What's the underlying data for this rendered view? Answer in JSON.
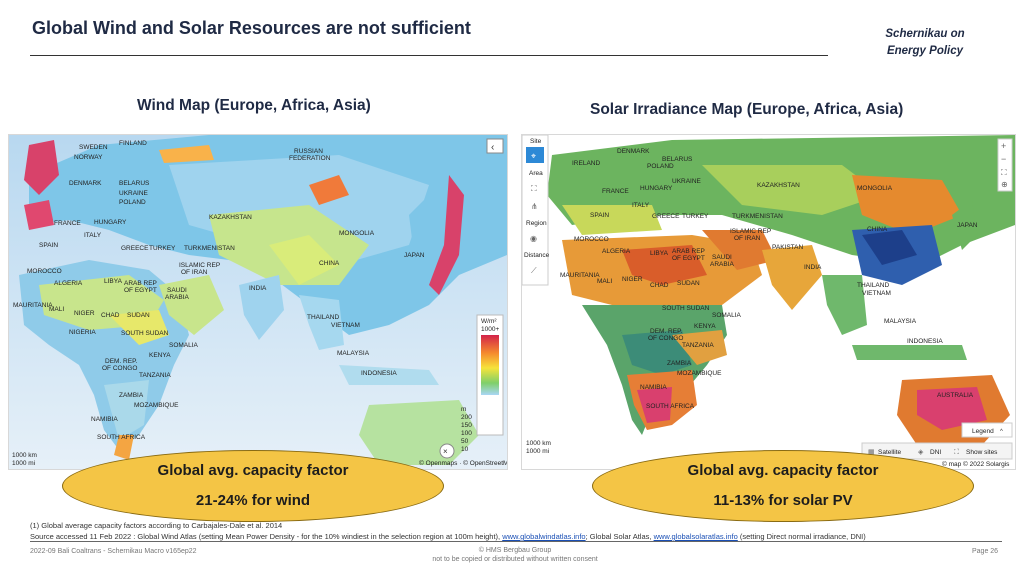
{
  "header": {
    "title": "Global Wind and Solar Resources are not sufficient",
    "brand_line1": "Schernikau on",
    "brand_line2": "Energy Policy"
  },
  "wind_map": {
    "title": "Wind Map (Europe, Africa, Asia)",
    "legend_unit": "W/m²",
    "legend_top": "1000+",
    "legend_scale": [
      "m",
      "200",
      "150",
      "100",
      "50",
      "10"
    ],
    "scale_bar": [
      "1000 km",
      "1000 mi"
    ],
    "attribution": "© Openmaps · © OpenStreetMap",
    "labels": [
      "SWEDEN",
      "FINLAND",
      "NORWAY",
      "RUSSIAN",
      "FEDERATION",
      "DENMARK",
      "BELARUS",
      "POLAND",
      "UKRAINE",
      "KAZAKHSTAN",
      "FRANCE",
      "HUNGARY",
      "ITALY",
      "SPAIN",
      "GREECE",
      "TURKEY",
      "TURKMENISTAN",
      "MOROCCO",
      "ISLAMIC REP",
      "OF IRAN",
      "ALGERIA",
      "LIBYA",
      "ARAB REP",
      "OF EGYPT",
      "SAUDI",
      "ARABIA",
      "CHINA",
      "INDIA",
      "MAURITANIA",
      "MALI",
      "NIGER",
      "CHAD",
      "SUDAN",
      "THAILAND",
      "VIETNAM",
      "NIGERIA",
      "SOUTH SUDAN",
      "DEM. REP.",
      "OF CONGO",
      "KENYA",
      "SOMALIA",
      "TANZANIA",
      "MALAYSIA",
      "INDONESIA",
      "ZAMBIA",
      "MOZAMBIQUE",
      "NAMIBIA",
      "SOUTH AFRICA",
      "JAPAN",
      "MONGOLIA"
    ]
  },
  "solar_map": {
    "title": "Solar Irradiance Map (Europe, Africa, Asia)",
    "sidebar": [
      "Site",
      "Area",
      "Region",
      "Distance"
    ],
    "legend_button": "Legend",
    "buttons": [
      "Satellite",
      "DNI",
      "Show sites"
    ],
    "scale_bar": [
      "1000 km",
      "1000 mi"
    ],
    "attribution": "© map © 2022 Solargis",
    "labels": [
      "IRELAND",
      "DENMARK",
      "BELARUS",
      "POLAND",
      "UKRAINE",
      "FRANCE",
      "HUNGARY",
      "KAZAKHSTAN",
      "MONGOLIA",
      "ITALY",
      "SPAIN",
      "GREECE",
      "TURKEY",
      "TURKMENISTAN",
      "ISLAMIC REP",
      "OF IRAN",
      "MOROCCO",
      "ALGERIA",
      "LIBYA",
      "ARAB REP",
      "OF EGYPT",
      "SAUDI",
      "ARABIA",
      "PAKISTAN",
      "CHINA",
      "JAPAN",
      "INDIA",
      "MAURITANIA",
      "MALI",
      "NIGER",
      "CHAD",
      "SUDAN",
      "THAILAND",
      "VIETNAM",
      "SOUTH SUDAN",
      "SOMALIA",
      "KENYA",
      "DEM. REP.",
      "OF CONGO",
      "TANZANIA",
      "MALAYSIA",
      "INDONESIA",
      "ZAMBIA",
      "MOZAMBIQUE",
      "NAMIBIA",
      "SOUTH AFRICA",
      "AUSTRALIA"
    ]
  },
  "callouts": {
    "wind_line1": "Global avg. capacity factor",
    "wind_line2": "21-24% for wind",
    "solar_line1": "Global avg. capacity factor",
    "solar_line2": "11-13% for solar PV"
  },
  "footnote": {
    "line1": "(1) Global average capacity factors according to Carbajales-Dale et al. 2014",
    "line2_a": "Source accessed 11 Feb 2022 : Global Wind Atlas (setting Mean Power Density -  for the 10% windiest in the selection region at 100m height),",
    "link1": "www.globalwindatlas.info",
    "line2_b": "; Global Solar Atlas,",
    "link2": "www.globalsolaratlas.info",
    "line2_c": "(setting Direct normal irradiance, DNI)"
  },
  "footer": {
    "left": "2022-09 Bali Coaltrans - Schernikau Macro v165ep22",
    "center1": "© HMS Bergbau Group",
    "center2": "not to be copied or distributed without written consent",
    "right": "Page 26"
  },
  "colors": {
    "title": "#1f2a44",
    "callout": "#f4c545",
    "link": "#1a4fb5"
  }
}
